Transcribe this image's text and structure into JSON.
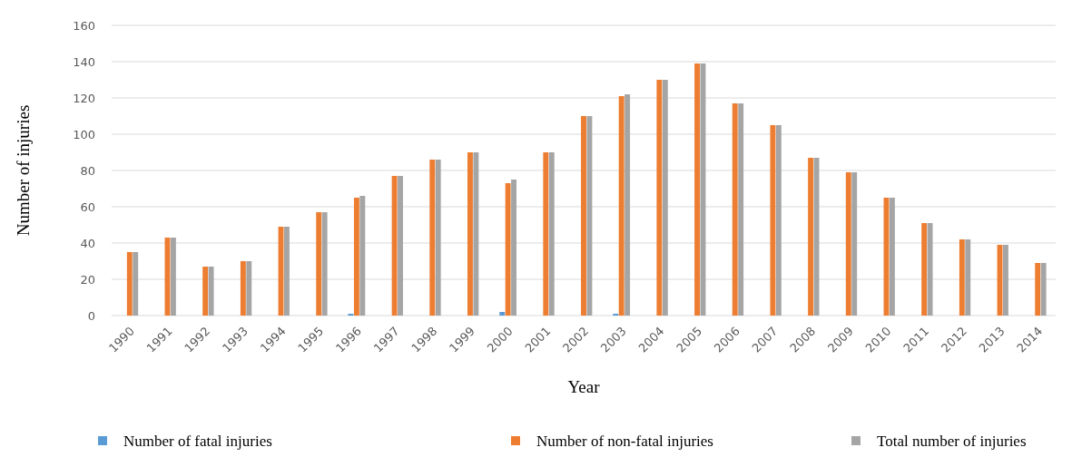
{
  "chart_data": {
    "type": "bar",
    "xlabel": "Year",
    "ylabel": "Number of injuries",
    "categories": [
      "1990",
      "1991",
      "1992",
      "1993",
      "1994",
      "1995",
      "1996",
      "1997",
      "1998",
      "1999",
      "2000",
      "2001",
      "2002",
      "2003",
      "2004",
      "2005",
      "2006",
      "2007",
      "2008",
      "2009",
      "2010",
      "2011",
      "2012",
      "2013",
      "2014"
    ],
    "series": [
      {
        "name": "Number of fatal injuries",
        "color": "#5b9bd5",
        "values": [
          0,
          0,
          0,
          0,
          0,
          0,
          1,
          0,
          0,
          0,
          2,
          0,
          0,
          1,
          0,
          0,
          0,
          0,
          0,
          0,
          0,
          0,
          0,
          0,
          0
        ]
      },
      {
        "name": "Number of non-fatal injuries",
        "color": "#ed7d31",
        "values": [
          35,
          43,
          27,
          30,
          49,
          57,
          65,
          77,
          86,
          90,
          73,
          90,
          110,
          121,
          130,
          139,
          117,
          105,
          87,
          79,
          65,
          51,
          42,
          39,
          29
        ]
      },
      {
        "name": "Total number of injuries",
        "color": "#a5a5a5",
        "values": [
          35,
          43,
          27,
          30,
          49,
          57,
          66,
          77,
          86,
          90,
          75,
          90,
          110,
          122,
          130,
          139,
          117,
          105,
          87,
          79,
          65,
          51,
          42,
          39,
          29
        ]
      }
    ],
    "ylim": [
      0,
      160
    ],
    "yticks": [
      0,
      20,
      40,
      60,
      80,
      100,
      120,
      140,
      160
    ],
    "grid": "y",
    "legend": "bottom"
  }
}
